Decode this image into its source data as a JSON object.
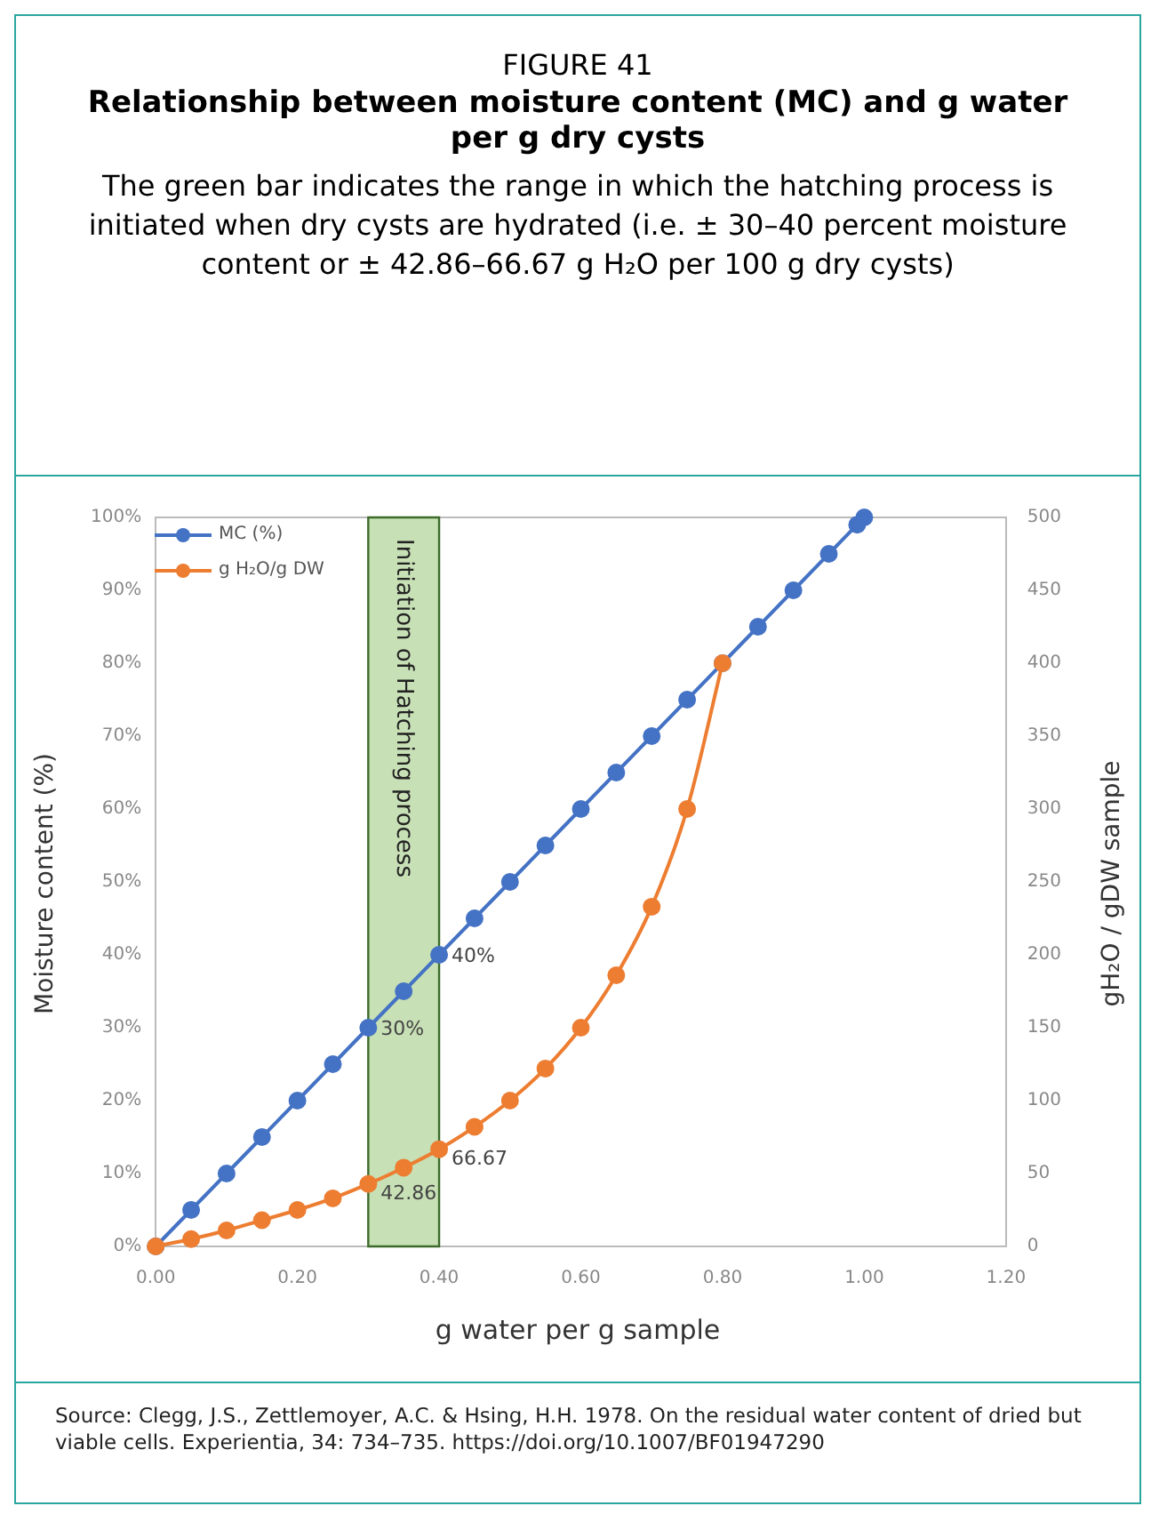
{
  "chart_data": {
    "type": "line",
    "title": "FIGURE 41",
    "subtitle": "Relationship between moisture content (MC) and g water per g dry cysts",
    "annotations": [
      "The green bar indicates the range in which the hatching process is initiated when dry cysts are hydrated (i.e. ± 30–40 percent moisture content or ± 42.86–66.67 g H₂O per 100 g dry cysts)",
      "Source: Clegg, J.S., Zettlemoyer, A.C. & Hsing, H.H. 1978. On the residual water content of dried but viable cells. Experientia, 34: 734–735. https://doi.org/10.1007/BF01947290"
    ],
    "xlabel": "g water per g sample",
    "ylabel": "Moisture content (%)",
    "y2label": "gH₂O / gDW sample",
    "series": [
      {
        "name": "MC (%)",
        "color": "#4472c4",
        "x": [
          0,
          0.05,
          0.1,
          0.15,
          0.2,
          0.25,
          0.3,
          0.35,
          0.4,
          0.45,
          0.5,
          0.55,
          0.6,
          0.65,
          0.7,
          0.75,
          0.8,
          0.85,
          0.9,
          0.95,
          0.99,
          1.0
        ],
        "values": [
          0,
          5,
          10,
          15,
          20,
          25,
          30,
          35,
          40,
          45,
          50,
          55,
          60,
          65,
          70,
          75,
          80,
          85,
          90,
          95,
          99,
          100
        ],
        "value_labels": [
          null,
          null,
          null,
          null,
          null,
          null,
          "30%",
          null,
          "40%",
          null,
          null,
          null,
          null,
          null,
          null,
          null,
          null,
          null,
          null,
          null,
          null,
          null
        ]
      },
      {
        "name": "g H₂O/g DW",
        "color": "#ed7d31",
        "axis": "y2",
        "x": [
          0,
          0.05,
          0.1,
          0.15,
          0.2,
          0.25,
          0.3,
          0.35,
          0.4,
          0.45,
          0.5,
          0.55,
          0.6,
          0.65,
          0.7,
          0.75,
          0.8
        ],
        "values": [
          0,
          5,
          11,
          18,
          25,
          33,
          42.86,
          54,
          66.67,
          82,
          100,
          122,
          150,
          186,
          233,
          300,
          400
        ],
        "value_labels": [
          null,
          null,
          null,
          null,
          null,
          null,
          "42.86",
          null,
          "66.67",
          null,
          null,
          null,
          null,
          null,
          null,
          null,
          null
        ]
      }
    ],
    "xlim": [
      0,
      1.2
    ],
    "xticks": [
      {
        "value": 0,
        "label": "0.00"
      },
      {
        "value": 0.2,
        "label": "0.20"
      },
      {
        "value": 0.4,
        "label": "0.40"
      },
      {
        "value": 0.6,
        "label": "0.60"
      },
      {
        "value": 0.8,
        "label": "0.80"
      },
      {
        "value": 1,
        "label": "1.00"
      },
      {
        "value": 1.2,
        "label": "1.20"
      }
    ],
    "ylim": [
      0,
      100
    ],
    "yticks": [
      {
        "value": 0,
        "label": "0%"
      },
      {
        "value": 10,
        "label": "10%"
      },
      {
        "value": 20,
        "label": "20%"
      },
      {
        "value": 30,
        "label": "30%"
      },
      {
        "value": 40,
        "label": "40%"
      },
      {
        "value": 50,
        "label": "50%"
      },
      {
        "value": 60,
        "label": "60%"
      },
      {
        "value": 70,
        "label": "70%"
      },
      {
        "value": 80,
        "label": "80%"
      },
      {
        "value": 90,
        "label": "90%"
      },
      {
        "value": 100,
        "label": "100%"
      }
    ],
    "y2lim": [
      0,
      500
    ],
    "y2ticks": [
      0,
      50,
      100,
      150,
      200,
      250,
      300,
      350,
      400,
      450,
      500
    ],
    "bands": [
      {
        "axis": "x",
        "from": 0.3,
        "to": 0.4,
        "label": "Initiation of Hatching process",
        "color": "#b4d59c"
      }
    ],
    "grid": false,
    "legend": "top left",
    "marker": "circle",
    "line_style": "solid"
  }
}
